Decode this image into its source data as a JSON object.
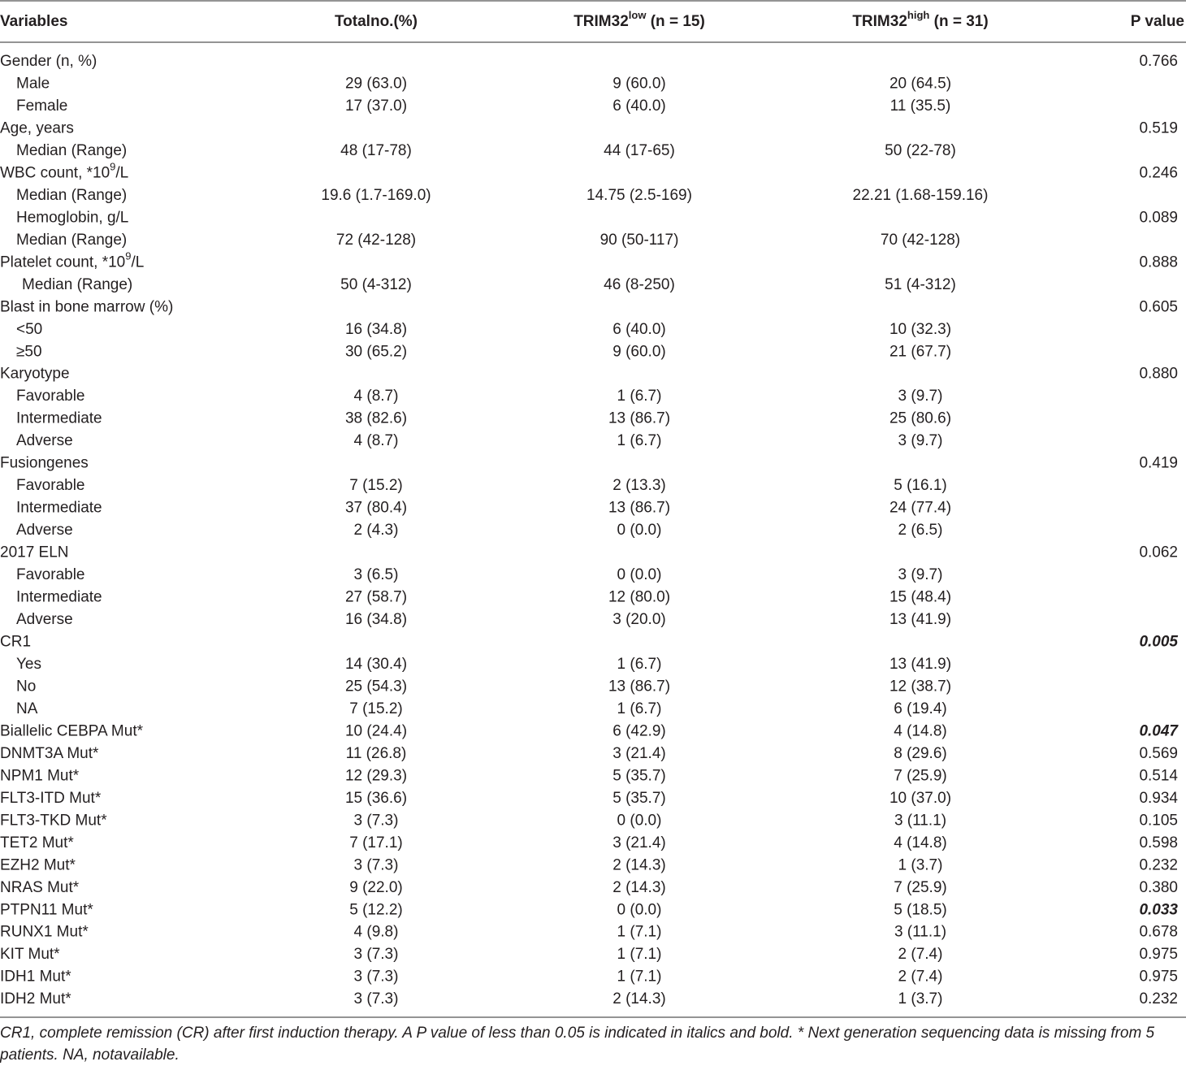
{
  "table": {
    "header": [
      "Variables",
      "Totalno.(%)",
      {
        "text": "TRIM32",
        "sup": "low",
        "after": " (n = 15)"
      },
      {
        "text": "TRIM32",
        "sup": "high",
        "after": " (n = 31)"
      },
      "P value"
    ],
    "rows": [
      [
        "Gender (n, %)",
        null,
        null,
        null,
        "0.766"
      ],
      [
        "Male",
        "29 (63.0)",
        "9 (60.0)",
        "20 (64.5)",
        null
      ],
      [
        "Female",
        "17 (37.0)",
        "6 (40.0)",
        "11 (35.5)",
        null
      ],
      [
        "Age, years",
        null,
        null,
        null,
        "0.519"
      ],
      [
        "Median  (Range)",
        "48 (17-78)",
        "44 (17-65)",
        "50 (22-78)",
        null
      ],
      [
        {
          "text": "WBC count, *10",
          "sup": "9",
          "after": "/L"
        },
        null,
        null,
        null,
        "0.246"
      ],
      [
        "Median  (Range)",
        "19.6 (1.7-169.0)",
        "14.75 (2.5-169)",
        "22.21 (1.68-159.16)",
        null
      ],
      [
        "Hemoglobin, g/L",
        null,
        null,
        null,
        "0.089"
      ],
      [
        "Median  (Range)",
        "72 (42-128)",
        "90 (50-117)",
        "70 (42-128)",
        null
      ],
      [
        {
          "text": "Platelet count, *10",
          "sup": "9",
          "after": "/L"
        },
        null,
        null,
        null,
        "0.888"
      ],
      [
        "Median  (Range)",
        "50 (4-312)",
        "46 (8-250)",
        "51 (4-312)",
        null
      ],
      [
        "Blast in bone marrow  (%)",
        null,
        null,
        null,
        "0.605"
      ],
      [
        "<50",
        "16 (34.8)",
        "6 (40.0)",
        "10 (32.3)",
        null
      ],
      [
        "≥50",
        "30 (65.2)",
        "9 (60.0)",
        "21 (67.7)",
        null
      ],
      [
        "Karyotype",
        null,
        null,
        null,
        "0.880"
      ],
      [
        "Favorable",
        "4 (8.7)",
        "1 (6.7)",
        "3 (9.7)",
        null
      ],
      [
        "Intermediate",
        "38 (82.6)",
        "13 (86.7)",
        "25 (80.6)",
        null
      ],
      [
        "Adverse",
        "4 (8.7)",
        "1 (6.7)",
        "3 (9.7)",
        null
      ],
      [
        "Fusiongenes",
        null,
        null,
        null,
        "0.419"
      ],
      [
        "Favorable",
        "7 (15.2)",
        "2 (13.3)",
        "5 (16.1)",
        null
      ],
      [
        "Intermediate",
        "37 (80.4)",
        "13 (86.7)",
        "24 (77.4)",
        null
      ],
      [
        "Adverse",
        "2 (4.3)",
        "0 (0.0)",
        "2 (6.5)",
        null
      ],
      [
        "2017 ELN",
        null,
        null,
        null,
        "0.062"
      ],
      [
        "Favorable",
        "3 (6.5)",
        "0 (0.0)",
        "3 (9.7)",
        null
      ],
      [
        "Intermediate",
        "27 (58.7)",
        "12 (80.0)",
        "15 (48.4)",
        null
      ],
      [
        "Adverse",
        "16 (34.8)",
        "3 (20.0)",
        "13 (41.9)",
        null
      ],
      [
        "CR1",
        null,
        null,
        null,
        {
          "text": "0.005",
          "style": "bold-italic"
        }
      ],
      [
        "Yes",
        "14 (30.4)",
        "1 (6.7)",
        "13 (41.9)",
        null
      ],
      [
        "No",
        "25 (54.3)",
        "13 (86.7)",
        "12 (38.7)",
        null
      ],
      [
        "NA",
        "7 (15.2)",
        "1 (6.7)",
        "6 (19.4)",
        null
      ],
      [
        "Biallelic CEBPA Mut*",
        "10 (24.4)",
        "6 (42.9)",
        "4 (14.8)",
        {
          "text": "0.047",
          "style": "bold-italic"
        }
      ],
      [
        "DNMT3A Mut*",
        "11 (26.8)",
        "3 (21.4)",
        "8 (29.6)",
        "0.569"
      ],
      [
        "NPM1 Mut*",
        "12 (29.3)",
        "5 (35.7)",
        "7 (25.9)",
        "0.514"
      ],
      [
        "FLT3-ITD Mut*",
        "15 (36.6)",
        "5 (35.7)",
        "10 (37.0)",
        "0.934"
      ],
      [
        "FLT3-TKD Mut*",
        "3 (7.3)",
        "0 (0.0)",
        "3 (11.1)",
        "0.105"
      ],
      [
        "TET2 Mut*",
        "7 (17.1)",
        "3 (21.4)",
        "4 (14.8)",
        "0.598"
      ],
      [
        "EZH2 Mut*",
        "3 (7.3)",
        "2 (14.3)",
        "1 (3.7)",
        "0.232"
      ],
      [
        "NRAS Mut*",
        "9 (22.0)",
        "2 (14.3)",
        "7 (25.9)",
        "0.380"
      ],
      [
        "PTPN11 Mut*",
        "5 (12.2)",
        "0 (0.0)",
        "5 (18.5)",
        {
          "text": "0.033",
          "style": "bold-italic"
        }
      ],
      [
        "RUNX1 Mut*",
        "4 (9.8)",
        "1 (7.1)",
        "3 (11.1)",
        "0.678"
      ],
      [
        "KIT Mut*",
        "3 (7.3)",
        "1 (7.1)",
        "2 (7.4)",
        "0.975"
      ],
      [
        "IDH1 Mut*",
        "3 (7.3)",
        "1 (7.1)",
        "2 (7.4)",
        "0.975"
      ],
      [
        "IDH2 Mut*",
        "3 (7.3)",
        "2 (14.3)",
        "1 (3.7)",
        "0.232"
      ]
    ],
    "footnote": "CR1, complete remission (CR) after first induction therapy. A P value of less than 0.05 is indicated in italics and bold. * Next generation sequencing data is missing from 5 patients. NA, notavailable."
  }
}
